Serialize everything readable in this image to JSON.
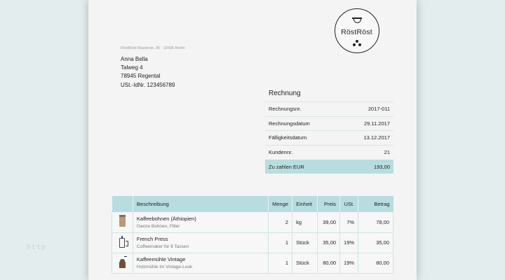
{
  "side": {
    "http_text": "http"
  },
  "logo": {
    "name": "RöstRöst"
  },
  "sender_line": "RöstRöst Musterstr. 36 · 10435 Berlin",
  "recipient": {
    "name": "Anna Bella",
    "street": "Talweg 4",
    "city": "78945 Regental",
    "vat": "USt.-IdNr. 123456789"
  },
  "invoice": {
    "title": "Rechnung",
    "rows": [
      {
        "label": "Rechnungsnr.",
        "value": "2017-011"
      },
      {
        "label": "Rechnungsdatum",
        "value": "29.11.2017"
      },
      {
        "label": "Fälligkeitsdatum",
        "value": "13.12.2017"
      },
      {
        "label": "Kundennr.",
        "value": "21"
      }
    ],
    "total": {
      "label": "Zu zahlen EUR",
      "value": "193,00"
    }
  },
  "table": {
    "headers": {
      "description": "Beschreibung",
      "quantity": "Menge",
      "unit": "Einheit",
      "price": "Preis",
      "vat": "USt.",
      "amount": "Betrag"
    },
    "rows": [
      {
        "icon": "coffee-bag-icon",
        "title": "Kaffeebohnen (Äthiopien)",
        "subtitle": "Ganze Bohnen, Filter",
        "quantity": "2",
        "unit": "kg",
        "price": "39,00",
        "vat": "7%",
        "amount": "78,00"
      },
      {
        "icon": "french-press-icon",
        "title": "French Press",
        "subtitle": "Coffeemaker für 6 Tassen",
        "quantity": "1",
        "unit": "Stück",
        "price": "35,00",
        "vat": "19%",
        "amount": "35,00"
      },
      {
        "icon": "coffee-mill-icon",
        "title": "Kaffeemühle Vintage",
        "subtitle": "Holzmühle im Vintage-Look",
        "quantity": "1",
        "unit": "Stück",
        "price": "80,00",
        "vat": "19%",
        "amount": "80,00"
      }
    ]
  },
  "colors": {
    "accent": "#b8dde0",
    "background": "#e4eeee",
    "page": "#f4f4f4"
  }
}
